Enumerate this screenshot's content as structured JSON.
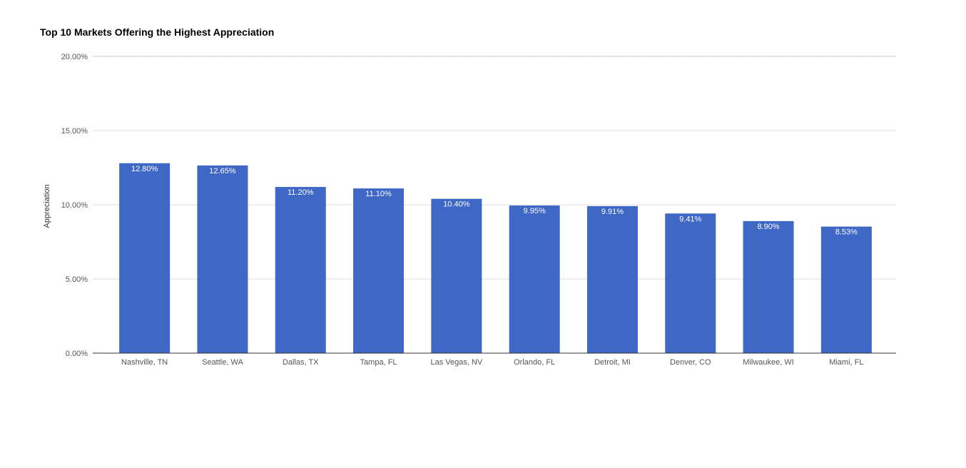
{
  "chart_data": {
    "type": "bar",
    "title": "Top 10 Markets Offering the Highest Appreciation",
    "xlabel": "",
    "ylabel": "Appreciation",
    "categories": [
      "Nashville, TN",
      "Seattle, WA",
      "Dallas, TX",
      "Tampa, FL",
      "Las Vegas, NV",
      "Orlando, FL",
      "Detroit, MI",
      "Denver, CO",
      "Milwaukee, WI",
      "Miami, FL"
    ],
    "values": [
      12.8,
      12.65,
      11.2,
      11.1,
      10.4,
      9.95,
      9.91,
      9.41,
      8.9,
      8.53
    ],
    "data_labels": [
      "12.80%",
      "12.65%",
      "11.20%",
      "11.10%",
      "10.40%",
      "9.95%",
      "9.91%",
      "9.41%",
      "8.90%",
      "8.53%"
    ],
    "ylim": [
      0,
      20
    ],
    "yticks": [
      0,
      5,
      10,
      15,
      20
    ],
    "ytick_labels": [
      "0.00%",
      "5.00%",
      "10.00%",
      "15.00%",
      "20.00%"
    ],
    "grid": true,
    "legend": "none",
    "colors": {
      "bar": "#3f67c6",
      "grid": "#dddddd",
      "top_grid": "#999999",
      "axis": "#333333"
    }
  }
}
